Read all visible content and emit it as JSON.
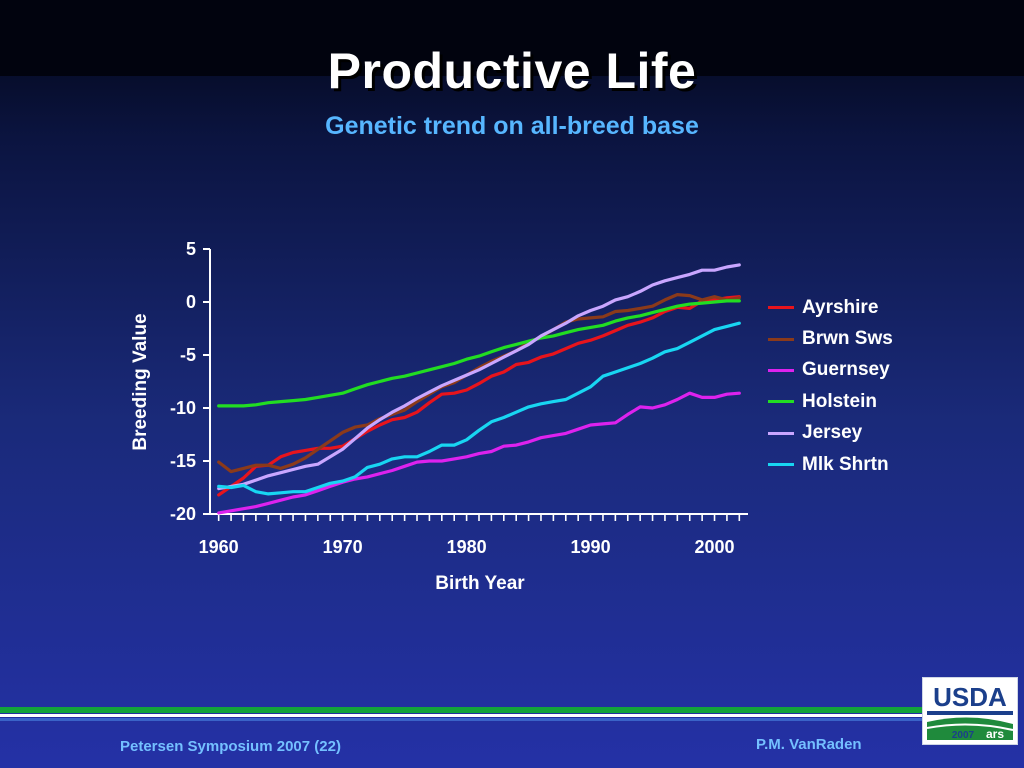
{
  "slide": {
    "title": "Productive Life",
    "subtitle": "Genetic trend on all-breed base",
    "footer_left": "Petersen Symposium 2007 (22)",
    "footer_right": "P.M. VanRaden",
    "logo_text": "USDA",
    "logo_year": "2007"
  },
  "colors": {
    "title": "#ffffff",
    "subtitle": "#57b6ff",
    "footer": "#74c0ff",
    "rule_green": "#13a33a",
    "rule_blue": "#3a63c8",
    "usda_blue": "#1b3f8b",
    "usda_green": "#1f8a3c"
  },
  "chart_data": {
    "type": "line",
    "xlabel": "Birth Year",
    "ylabel": "Breeding Value",
    "xlim": [
      1960,
      2002
    ],
    "ylim": [
      -20,
      5
    ],
    "xticks": [
      1960,
      1970,
      1980,
      1990,
      2000
    ],
    "yticks": [
      5,
      0,
      -5,
      -10,
      -15,
      -20
    ],
    "grid": false,
    "legend_position": "right",
    "x": [
      1960,
      1961,
      1962,
      1963,
      1964,
      1965,
      1966,
      1967,
      1968,
      1969,
      1970,
      1971,
      1972,
      1973,
      1974,
      1975,
      1976,
      1977,
      1978,
      1979,
      1980,
      1981,
      1982,
      1983,
      1984,
      1985,
      1986,
      1987,
      1988,
      1989,
      1990,
      1991,
      1992,
      1993,
      1994,
      1995,
      1996,
      1997,
      1998,
      1999,
      2000,
      2001,
      2002
    ],
    "series": [
      {
        "name": "Ayrshire",
        "color": "#e8141c",
        "values": [
          -18.2,
          -17.4,
          -16.6,
          -15.5,
          -15.4,
          -14.6,
          -14.2,
          -14.0,
          -13.8,
          -13.8,
          -13.6,
          -12.9,
          -12.2,
          -11.6,
          -11.1,
          -10.9,
          -10.4,
          -9.5,
          -8.7,
          -8.6,
          -8.3,
          -7.7,
          -7.0,
          -6.6,
          -5.9,
          -5.7,
          -5.2,
          -4.9,
          -4.4,
          -3.9,
          -3.6,
          -3.2,
          -2.7,
          -2.2,
          -1.9,
          -1.5,
          -0.9,
          -0.5,
          -0.6,
          0.1,
          0.2,
          0.4,
          0.5
        ]
      },
      {
        "name": "Brwn Sws",
        "color": "#8b3a1a",
        "values": [
          -15.1,
          -16.0,
          -15.7,
          -15.4,
          -15.4,
          -15.7,
          -15.3,
          -14.7,
          -13.9,
          -13.1,
          -12.3,
          -11.8,
          -11.6,
          -11.0,
          -10.6,
          -10.2,
          -9.4,
          -8.7,
          -8.0,
          -7.6,
          -6.9,
          -6.2,
          -5.6,
          -5.1,
          -4.6,
          -3.8,
          -3.3,
          -2.6,
          -1.9,
          -1.6,
          -1.5,
          -1.4,
          -0.9,
          -0.8,
          -0.6,
          -0.4,
          0.2,
          0.7,
          0.6,
          0.2,
          0.5,
          0.2,
          0.4
        ]
      },
      {
        "name": "Guernsey",
        "color": "#dd22ee",
        "values": [
          -19.9,
          -19.7,
          -19.5,
          -19.3,
          -19.0,
          -18.7,
          -18.4,
          -18.2,
          -17.8,
          -17.4,
          -17.0,
          -16.7,
          -16.5,
          -16.2,
          -15.9,
          -15.5,
          -15.1,
          -15.0,
          -15.0,
          -14.8,
          -14.6,
          -14.3,
          -14.1,
          -13.6,
          -13.5,
          -13.2,
          -12.8,
          -12.6,
          -12.4,
          -12.0,
          -11.6,
          -11.5,
          -11.4,
          -10.6,
          -9.9,
          -10.0,
          -9.7,
          -9.2,
          -8.6,
          -9.0,
          -9.0,
          -8.7,
          -8.6
        ]
      },
      {
        "name": "Holstein",
        "color": "#22dd22",
        "values": [
          -9.8,
          -9.8,
          -9.8,
          -9.7,
          -9.5,
          -9.4,
          -9.3,
          -9.2,
          -9.0,
          -8.8,
          -8.6,
          -8.2,
          -7.8,
          -7.5,
          -7.2,
          -7.0,
          -6.7,
          -6.4,
          -6.1,
          -5.8,
          -5.4,
          -5.1,
          -4.7,
          -4.3,
          -4.0,
          -3.7,
          -3.4,
          -3.2,
          -2.9,
          -2.6,
          -2.4,
          -2.2,
          -1.8,
          -1.5,
          -1.3,
          -1.0,
          -0.7,
          -0.4,
          -0.2,
          -0.1,
          0.0,
          0.1,
          0.1
        ]
      },
      {
        "name": "Jersey",
        "color": "#c9a6ff",
        "values": [
          -17.6,
          -17.4,
          -17.2,
          -16.8,
          -16.4,
          -16.1,
          -15.8,
          -15.5,
          -15.3,
          -14.6,
          -13.9,
          -12.9,
          -11.9,
          -11.1,
          -10.4,
          -9.8,
          -9.1,
          -8.5,
          -7.9,
          -7.4,
          -6.9,
          -6.4,
          -5.8,
          -5.2,
          -4.6,
          -4.0,
          -3.2,
          -2.6,
          -2.0,
          -1.3,
          -0.8,
          -0.4,
          0.2,
          0.5,
          1.0,
          1.6,
          2.0,
          2.3,
          2.6,
          3.0,
          3.0,
          3.3,
          3.5
        ]
      },
      {
        "name": "Mlk Shrtn",
        "color": "#18d6f2",
        "values": [
          -17.4,
          -17.5,
          -17.3,
          -17.9,
          -18.1,
          -18.0,
          -17.9,
          -17.9,
          -17.5,
          -17.1,
          -16.9,
          -16.5,
          -15.6,
          -15.3,
          -14.8,
          -14.6,
          -14.6,
          -14.1,
          -13.5,
          -13.5,
          -13.0,
          -12.1,
          -11.3,
          -10.9,
          -10.4,
          -9.9,
          -9.6,
          -9.4,
          -9.2,
          -8.6,
          -8.0,
          -7.0,
          -6.6,
          -6.2,
          -5.8,
          -5.3,
          -4.7,
          -4.4,
          -3.8,
          -3.2,
          -2.6,
          -2.3,
          -2.0
        ]
      }
    ]
  }
}
